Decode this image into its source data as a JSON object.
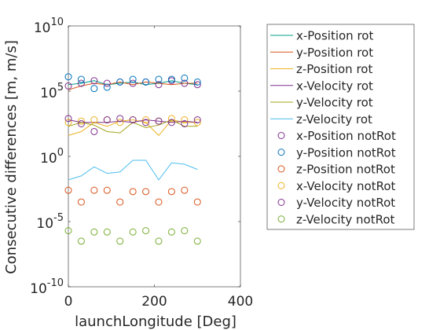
{
  "chart_data": {
    "type": "line",
    "xlabel": "launchLongitude [Deg]",
    "ylabel": "Consecutive differences [m, m/s]",
    "xlim": [
      0,
      400
    ],
    "ylim_log10": [
      -10,
      10
    ],
    "yscale": "log",
    "grid": false,
    "legend_position": "outside-right",
    "x_ticks": [
      {
        "value": 0,
        "label": "0"
      },
      {
        "value": 200,
        "label": "200"
      },
      {
        "value": 400,
        "label": "400"
      }
    ],
    "y_ticks": [
      {
        "exp": 10,
        "base": "10",
        "sup": "10"
      },
      {
        "exp": 5,
        "base": "10",
        "sup": "5"
      },
      {
        "exp": 0,
        "base": "10",
        "sup": "0"
      },
      {
        "exp": -5,
        "base": "10",
        "sup": "-5"
      },
      {
        "exp": -10,
        "base": "10",
        "sup": "-10"
      }
    ],
    "x": [
      0,
      30,
      60,
      90,
      120,
      150,
      180,
      210,
      240,
      270,
      300
    ],
    "series": [
      {
        "name": "x-Position rot",
        "color": "#00a08a",
        "style": "line",
        "log10_values": [
          5.5,
          5.6,
          5.8,
          5.5,
          5.6,
          5.7,
          5.5,
          5.6,
          5.8,
          5.6,
          5.5
        ]
      },
      {
        "name": "y-Position rot",
        "color": "#d95319",
        "style": "line",
        "log10_values": [
          5.1,
          5.4,
          5.6,
          5.5,
          5.7,
          5.5,
          5.7,
          5.6,
          5.5,
          5.6,
          5.6
        ]
      },
      {
        "name": "z-Position rot",
        "color": "#edb120",
        "style": "line",
        "log10_values": [
          1.6,
          1.9,
          2.6,
          2.3,
          2.7,
          2.8,
          2.6,
          1.6,
          2.8,
          2.6,
          2.6
        ]
      },
      {
        "name": "x-Velocity rot",
        "color": "#7e2f8e",
        "style": "line",
        "log10_values": [
          2.8,
          2.6,
          2.6,
          2.6,
          2.7,
          2.6,
          2.8,
          2.7,
          2.6,
          2.7,
          2.6
        ]
      },
      {
        "name": "y-Velocity rot",
        "color": "#a3a31a",
        "style": "line",
        "log10_values": [
          2.3,
          2.6,
          2.4,
          1.9,
          1.8,
          2.6,
          2.2,
          2.4,
          2.8,
          2.3,
          2.3
        ]
      },
      {
        "name": "z-Velocity rot",
        "color": "#4dbeee",
        "style": "line",
        "log10_values": [
          -1.8,
          -1.5,
          -0.8,
          -1.3,
          -1.2,
          -0.3,
          -0.3,
          -1.8,
          -0.5,
          -0.6,
          -1.0
        ]
      },
      {
        "name": "x-Position notRot",
        "color": "#7e2f8e",
        "style": "marker",
        "log10_values": [
          5.4,
          5.6,
          5.8,
          5.6,
          5.7,
          5.6,
          5.7,
          5.5,
          5.8,
          5.6,
          5.5
        ]
      },
      {
        "name": "y-Position notRot",
        "color": "#0072bd",
        "style": "marker",
        "log10_values": [
          6.1,
          5.9,
          5.2,
          5.3,
          5.7,
          5.9,
          5.7,
          5.9,
          5.9,
          6.0,
          5.7
        ]
      },
      {
        "name": "z-Position notRot",
        "color": "#d95319",
        "style": "marker",
        "log10_values": [
          -2.6,
          -3.5,
          -2.6,
          -2.6,
          -3.5,
          -2.7,
          -2.7,
          -3.5,
          -2.7,
          -2.6,
          -3.5
        ]
      },
      {
        "name": "x-Velocity notRot",
        "color": "#edb120",
        "style": "marker",
        "log10_values": [
          2.6,
          2.7,
          2.8,
          2.8,
          2.6,
          2.8,
          2.8,
          2.7,
          2.9,
          2.8,
          2.6
        ]
      },
      {
        "name": "y-Velocity notRot",
        "color": "#7e2f8e",
        "style": "marker",
        "log10_values": [
          2.9,
          2.5,
          1.9,
          2.8,
          2.9,
          2.8,
          2.6,
          2.7,
          2.6,
          2.5,
          2.8
        ]
      },
      {
        "name": "z-Velocity notRot",
        "color": "#77ac30",
        "style": "marker",
        "log10_values": [
          -5.7,
          -6.5,
          -5.8,
          -5.8,
          -6.5,
          -5.8,
          -5.7,
          -6.5,
          -5.8,
          -5.7,
          -6.5
        ]
      }
    ]
  }
}
